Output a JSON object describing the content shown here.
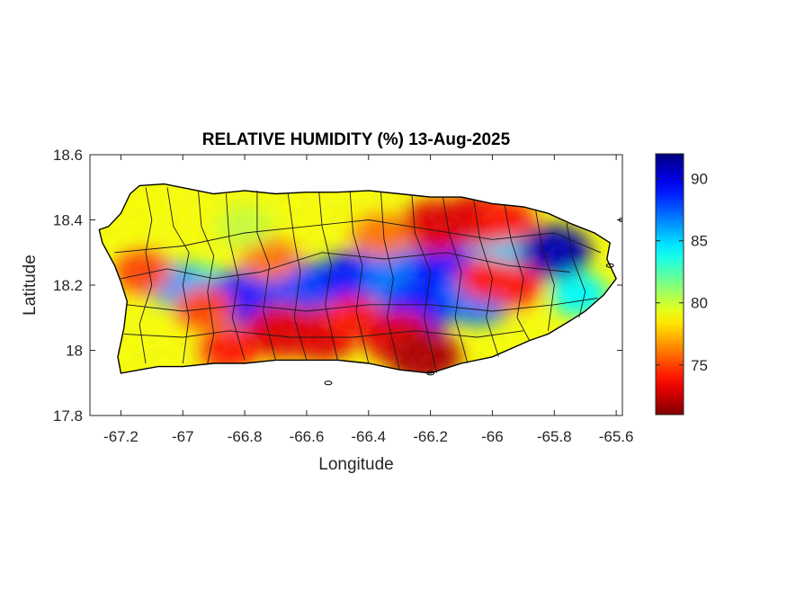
{
  "chart_data": {
    "type": "heatmap",
    "title": "RELATIVE HUMIDITY (%) 13-Aug-2025",
    "xlabel": "Longitude",
    "ylabel": "Latitude",
    "xlim": [
      -67.3,
      -65.58
    ],
    "ylim": [
      17.8,
      18.6
    ],
    "x_ticks": [
      "-67.2",
      "-67",
      "-66.8",
      "-66.6",
      "-66.4",
      "-66.2",
      "-66",
      "-65.8",
      "-65.6"
    ],
    "x_tick_values": [
      -67.2,
      -67.0,
      -66.8,
      -66.6,
      -66.4,
      -66.2,
      -66.0,
      -65.8,
      -65.6
    ],
    "y_ticks": [
      "17.8",
      "18",
      "18.2",
      "18.4",
      "18.6"
    ],
    "y_tick_values": [
      17.8,
      18.0,
      18.2,
      18.4,
      18.6
    ],
    "colorbar": {
      "colormap": "jet",
      "range": [
        71,
        92
      ],
      "ticks": [
        "75",
        "80",
        "85",
        "90"
      ],
      "tick_values": [
        75,
        80,
        85,
        90
      ]
    },
    "background_value": 79,
    "humid_band": [
      [
        -67.05,
        18.21
      ],
      [
        -66.9,
        18.18
      ],
      [
        -66.78,
        18.15
      ],
      [
        -66.65,
        18.18
      ],
      [
        -66.5,
        18.21
      ],
      [
        -66.35,
        18.22
      ],
      [
        -66.2,
        18.24
      ],
      [
        -66.1,
        18.26
      ],
      [
        -65.98,
        18.25
      ],
      [
        -65.88,
        18.27
      ],
      [
        -65.8,
        18.29
      ]
    ],
    "features": [
      {
        "lon": -67.02,
        "lat": 18.2,
        "value": 86
      },
      {
        "lon": -66.82,
        "lat": 18.16,
        "value": 89
      },
      {
        "lon": -66.62,
        "lat": 18.19,
        "value": 88
      },
      {
        "lon": -66.45,
        "lat": 18.22,
        "value": 89
      },
      {
        "lon": -66.3,
        "lat": 18.23,
        "value": 87
      },
      {
        "lon": -66.15,
        "lat": 18.25,
        "value": 89
      },
      {
        "lon": -66.05,
        "lat": 18.16,
        "value": 87
      },
      {
        "lon": -65.96,
        "lat": 18.28,
        "value": 85
      },
      {
        "lon": -65.8,
        "lat": 18.3,
        "value": 91
      },
      {
        "lon": -65.72,
        "lat": 18.17,
        "value": 84
      },
      {
        "lon": -66.25,
        "lat": 18.12,
        "value": 89
      },
      {
        "lon": -66.18,
        "lat": 18.38,
        "value": 73
      },
      {
        "lon": -66.05,
        "lat": 18.4,
        "value": 73
      },
      {
        "lon": -65.96,
        "lat": 18.4,
        "value": 74
      },
      {
        "lon": -66.02,
        "lat": 18.22,
        "value": 74
      },
      {
        "lon": -65.93,
        "lat": 18.2,
        "value": 74
      },
      {
        "lon": -66.68,
        "lat": 18.06,
        "value": 73
      },
      {
        "lon": -66.55,
        "lat": 18.05,
        "value": 73
      },
      {
        "lon": -66.45,
        "lat": 18.1,
        "value": 74
      },
      {
        "lon": -66.3,
        "lat": 18.04,
        "value": 73
      },
      {
        "lon": -66.22,
        "lat": 17.98,
        "value": 72
      },
      {
        "lon": -66.85,
        "lat": 18.0,
        "value": 74
      },
      {
        "lon": -66.93,
        "lat": 18.13,
        "value": 75
      },
      {
        "lon": -67.13,
        "lat": 18.24,
        "value": 75
      },
      {
        "lon": -66.72,
        "lat": 18.28,
        "value": 76
      },
      {
        "lon": -66.36,
        "lat": 18.35,
        "value": 76
      },
      {
        "lon": -66.8,
        "lat": 18.38,
        "value": 80
      },
      {
        "lon": -67.15,
        "lat": 18.45,
        "value": 79
      }
    ]
  }
}
